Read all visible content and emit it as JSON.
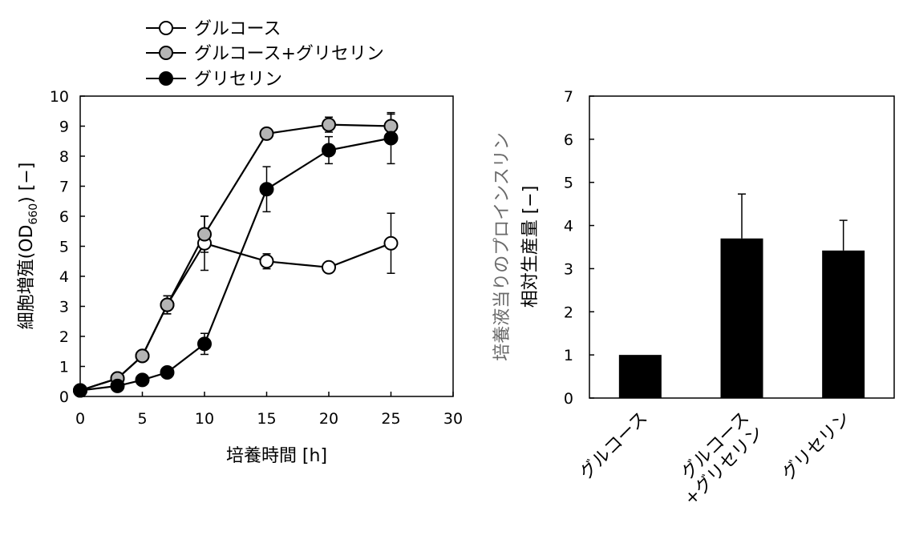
{
  "chart_data": [
    {
      "type": "line",
      "xlabel": "培養時間 [h]",
      "ylabel": "細胞増殖(OD660) [−]",
      "ylabel_parts": {
        "main": "細胞増殖(OD",
        "sub": "660",
        "tail": ")  [−]"
      },
      "xlim": [
        0,
        30
      ],
      "ylim": [
        0,
        10
      ],
      "xticks": [
        "0",
        "5",
        "10",
        "15",
        "20",
        "25",
        "30"
      ],
      "yticks": [
        "0",
        "1",
        "2",
        "3",
        "4",
        "5",
        "6",
        "7",
        "8",
        "9",
        "10"
      ],
      "grid": false,
      "legend_position": "top-left",
      "series": [
        {
          "name": "グルコース",
          "marker_fill": "#ffffff",
          "x": [
            0,
            3,
            5,
            7,
            10,
            15,
            20,
            25
          ],
          "y": [
            0.2,
            0.6,
            1.35,
            3.05,
            5.1,
            4.5,
            4.3,
            5.1
          ],
          "err": [
            0,
            0,
            0,
            0.3,
            0.9,
            0.25,
            0,
            1.0
          ]
        },
        {
          "name": "グルコース+グリセリン",
          "marker_fill": "#b4b4b4",
          "x": [
            0,
            3,
            5,
            7,
            10,
            15,
            20,
            25
          ],
          "y": [
            0.2,
            0.6,
            1.35,
            3.05,
            5.4,
            8.75,
            9.05,
            9.0
          ],
          "err": [
            0,
            0,
            0,
            0.3,
            0.6,
            0,
            0.25,
            0.4
          ]
        },
        {
          "name": "グリセリン",
          "marker_fill": "#000000",
          "x": [
            0,
            3,
            5,
            7,
            10,
            15,
            20,
            25
          ],
          "y": [
            0.2,
            0.35,
            0.55,
            0.8,
            1.75,
            6.9,
            8.2,
            8.6
          ],
          "err": [
            0,
            0,
            0,
            0,
            0.35,
            0.75,
            0.45,
            0.85
          ]
        }
      ]
    },
    {
      "type": "bar",
      "ylabel_line1": "培養液当りのプロインスリン",
      "ylabel_line2": "相対生産量 [−]",
      "ylim": [
        0,
        7
      ],
      "yticks": [
        "0",
        "1",
        "2",
        "3",
        "4",
        "5",
        "6",
        "7"
      ],
      "categories": [
        {
          "lines": [
            "グルコース"
          ]
        },
        {
          "lines": [
            "グルコース",
            "+グリセリン"
          ]
        },
        {
          "lines": [
            "グリセリン"
          ]
        }
      ],
      "values": [
        1.0,
        3.7,
        3.42
      ],
      "err": [
        0,
        1.03,
        0.7
      ],
      "bar_color": "#000000",
      "grid": false
    }
  ]
}
